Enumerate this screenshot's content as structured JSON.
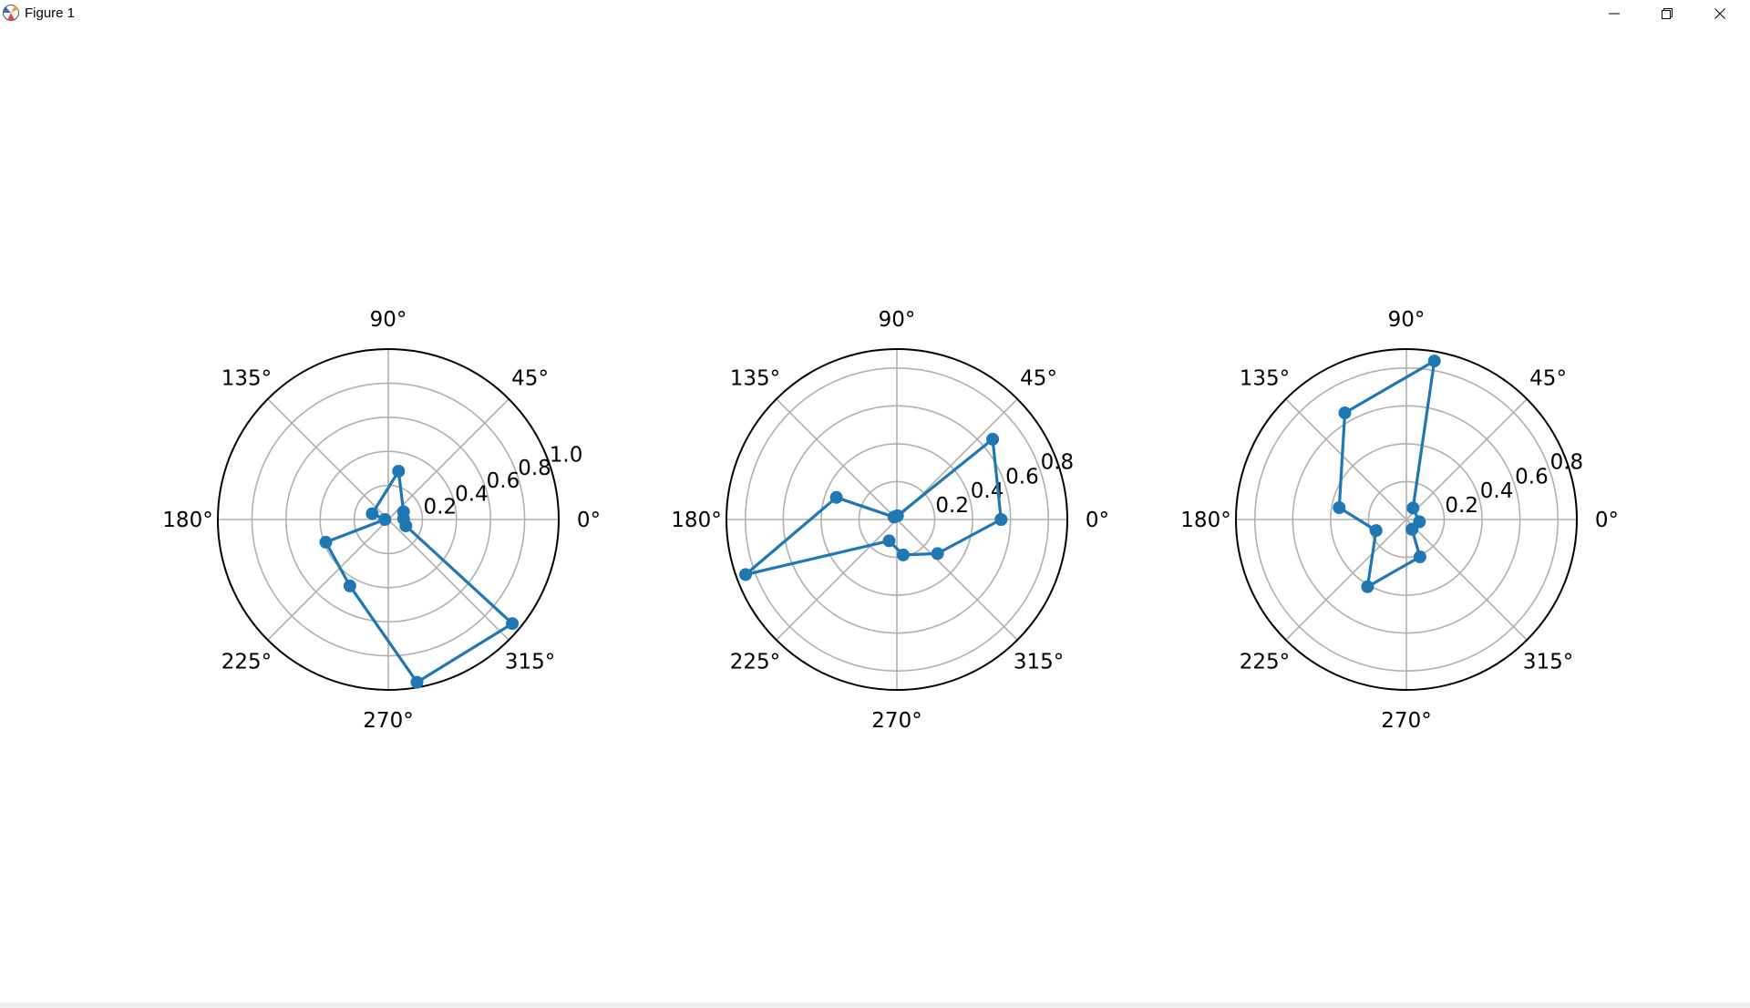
{
  "window": {
    "title": "Figure 1",
    "minimize_icon": "minimize-icon",
    "restore_icon": "restore-icon",
    "close_icon": "close-icon"
  },
  "chart_data": [
    {
      "type": "polar-line",
      "title": "",
      "rmax": 1.0,
      "rticks": [
        0.2,
        0.4,
        0.6,
        0.8,
        1.0
      ],
      "rtick_labels": [
        "0.2",
        "0.4",
        "0.6",
        "0.8",
        "1.0"
      ],
      "theta_ticks": [
        "0°",
        "45°",
        "90°",
        "135°",
        "180°",
        "225°",
        "270°",
        "315°"
      ],
      "grid": true,
      "color": "#1f77b4",
      "points": [
        {
          "theta": 3,
          "r": 0.09
        },
        {
          "theta": 27,
          "r": 0.1
        },
        {
          "theta": 78,
          "r": 0.29
        },
        {
          "theta": 160,
          "r": 0.1
        },
        {
          "theta": 180,
          "r": 0.02
        },
        {
          "theta": 200,
          "r": 0.39
        },
        {
          "theta": 240,
          "r": 0.45
        },
        {
          "theta": 280,
          "r": 0.97
        },
        {
          "theta": 320,
          "r": 0.95
        },
        {
          "theta": 340,
          "r": 0.11
        }
      ]
    },
    {
      "type": "polar-line",
      "title": "",
      "rmax": 0.9,
      "rticks": [
        0.2,
        0.4,
        0.6,
        0.8
      ],
      "rtick_labels": [
        "0.2",
        "0.4",
        "0.6",
        "0.8"
      ],
      "theta_ticks": [
        "0°",
        "45°",
        "90°",
        "135°",
        "180°",
        "225°",
        "270°",
        "315°"
      ],
      "grid": true,
      "color": "#1f77b4",
      "points": [
        {
          "theta": 0,
          "r": 0.55
        },
        {
          "theta": 40,
          "r": 0.66
        },
        {
          "theta": 80,
          "r": 0.02
        },
        {
          "theta": 140,
          "r": 0.02
        },
        {
          "theta": 160,
          "r": 0.34
        },
        {
          "theta": 200,
          "r": 0.85
        },
        {
          "theta": 250,
          "r": 0.12
        },
        {
          "theta": 280,
          "r": 0.19
        },
        {
          "theta": 320,
          "r": 0.28
        },
        {
          "theta": 0,
          "r": 0.55
        }
      ]
    },
    {
      "type": "polar-line",
      "title": "",
      "rmax": 0.9,
      "rticks": [
        0.2,
        0.4,
        0.6,
        0.8
      ],
      "rtick_labels": [
        "0.2",
        "0.4",
        "0.6",
        "0.8"
      ],
      "theta_ticks": [
        "0°",
        "45°",
        "90°",
        "135°",
        "180°",
        "225°",
        "270°",
        "315°"
      ],
      "grid": true,
      "color": "#1f77b4",
      "points": [
        {
          "theta": 300,
          "r": 0.06
        },
        {
          "theta": 350,
          "r": 0.07
        },
        {
          "theta": 60,
          "r": 0.07
        },
        {
          "theta": 80,
          "r": 0.85
        },
        {
          "theta": 120,
          "r": 0.65
        },
        {
          "theta": 170,
          "r": 0.36
        },
        {
          "theta": 200,
          "r": 0.17
        },
        {
          "theta": 240,
          "r": 0.41
        },
        {
          "theta": 290,
          "r": 0.21
        },
        {
          "theta": 300,
          "r": 0.06
        }
      ]
    }
  ]
}
